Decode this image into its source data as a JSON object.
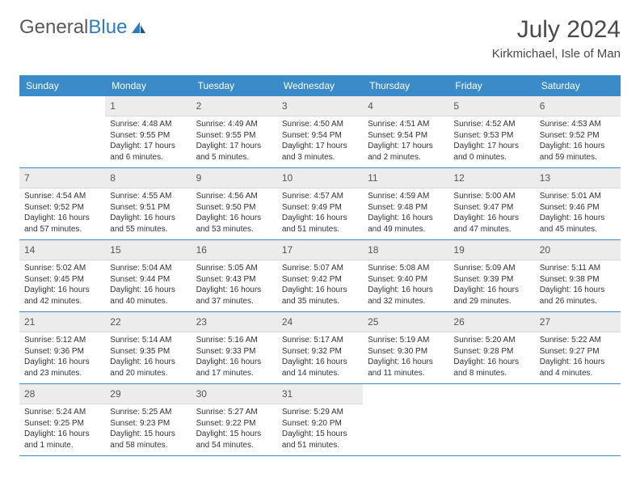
{
  "logo": {
    "text_part1": "General",
    "text_part2": "Blue"
  },
  "title": "July 2024",
  "location": "Kirkmichael, Isle of Man",
  "colors": {
    "header_bg": "#3b8bc8",
    "daynum_bg": "#ececec",
    "divider": "#3b8bc8",
    "logo_gray": "#5a5a5a",
    "logo_blue": "#2e7cc0"
  },
  "day_headers": [
    "Sunday",
    "Monday",
    "Tuesday",
    "Wednesday",
    "Thursday",
    "Friday",
    "Saturday"
  ],
  "weeks": [
    [
      {
        "n": "",
        "sunrise": "",
        "sunset": "",
        "daylight": ""
      },
      {
        "n": "1",
        "sunrise": "Sunrise: 4:48 AM",
        "sunset": "Sunset: 9:55 PM",
        "daylight": "Daylight: 17 hours and 6 minutes."
      },
      {
        "n": "2",
        "sunrise": "Sunrise: 4:49 AM",
        "sunset": "Sunset: 9:55 PM",
        "daylight": "Daylight: 17 hours and 5 minutes."
      },
      {
        "n": "3",
        "sunrise": "Sunrise: 4:50 AM",
        "sunset": "Sunset: 9:54 PM",
        "daylight": "Daylight: 17 hours and 3 minutes."
      },
      {
        "n": "4",
        "sunrise": "Sunrise: 4:51 AM",
        "sunset": "Sunset: 9:54 PM",
        "daylight": "Daylight: 17 hours and 2 minutes."
      },
      {
        "n": "5",
        "sunrise": "Sunrise: 4:52 AM",
        "sunset": "Sunset: 9:53 PM",
        "daylight": "Daylight: 17 hours and 0 minutes."
      },
      {
        "n": "6",
        "sunrise": "Sunrise: 4:53 AM",
        "sunset": "Sunset: 9:52 PM",
        "daylight": "Daylight: 16 hours and 59 minutes."
      }
    ],
    [
      {
        "n": "7",
        "sunrise": "Sunrise: 4:54 AM",
        "sunset": "Sunset: 9:52 PM",
        "daylight": "Daylight: 16 hours and 57 minutes."
      },
      {
        "n": "8",
        "sunrise": "Sunrise: 4:55 AM",
        "sunset": "Sunset: 9:51 PM",
        "daylight": "Daylight: 16 hours and 55 minutes."
      },
      {
        "n": "9",
        "sunrise": "Sunrise: 4:56 AM",
        "sunset": "Sunset: 9:50 PM",
        "daylight": "Daylight: 16 hours and 53 minutes."
      },
      {
        "n": "10",
        "sunrise": "Sunrise: 4:57 AM",
        "sunset": "Sunset: 9:49 PM",
        "daylight": "Daylight: 16 hours and 51 minutes."
      },
      {
        "n": "11",
        "sunrise": "Sunrise: 4:59 AM",
        "sunset": "Sunset: 9:48 PM",
        "daylight": "Daylight: 16 hours and 49 minutes."
      },
      {
        "n": "12",
        "sunrise": "Sunrise: 5:00 AM",
        "sunset": "Sunset: 9:47 PM",
        "daylight": "Daylight: 16 hours and 47 minutes."
      },
      {
        "n": "13",
        "sunrise": "Sunrise: 5:01 AM",
        "sunset": "Sunset: 9:46 PM",
        "daylight": "Daylight: 16 hours and 45 minutes."
      }
    ],
    [
      {
        "n": "14",
        "sunrise": "Sunrise: 5:02 AM",
        "sunset": "Sunset: 9:45 PM",
        "daylight": "Daylight: 16 hours and 42 minutes."
      },
      {
        "n": "15",
        "sunrise": "Sunrise: 5:04 AM",
        "sunset": "Sunset: 9:44 PM",
        "daylight": "Daylight: 16 hours and 40 minutes."
      },
      {
        "n": "16",
        "sunrise": "Sunrise: 5:05 AM",
        "sunset": "Sunset: 9:43 PM",
        "daylight": "Daylight: 16 hours and 37 minutes."
      },
      {
        "n": "17",
        "sunrise": "Sunrise: 5:07 AM",
        "sunset": "Sunset: 9:42 PM",
        "daylight": "Daylight: 16 hours and 35 minutes."
      },
      {
        "n": "18",
        "sunrise": "Sunrise: 5:08 AM",
        "sunset": "Sunset: 9:40 PM",
        "daylight": "Daylight: 16 hours and 32 minutes."
      },
      {
        "n": "19",
        "sunrise": "Sunrise: 5:09 AM",
        "sunset": "Sunset: 9:39 PM",
        "daylight": "Daylight: 16 hours and 29 minutes."
      },
      {
        "n": "20",
        "sunrise": "Sunrise: 5:11 AM",
        "sunset": "Sunset: 9:38 PM",
        "daylight": "Daylight: 16 hours and 26 minutes."
      }
    ],
    [
      {
        "n": "21",
        "sunrise": "Sunrise: 5:12 AM",
        "sunset": "Sunset: 9:36 PM",
        "daylight": "Daylight: 16 hours and 23 minutes."
      },
      {
        "n": "22",
        "sunrise": "Sunrise: 5:14 AM",
        "sunset": "Sunset: 9:35 PM",
        "daylight": "Daylight: 16 hours and 20 minutes."
      },
      {
        "n": "23",
        "sunrise": "Sunrise: 5:16 AM",
        "sunset": "Sunset: 9:33 PM",
        "daylight": "Daylight: 16 hours and 17 minutes."
      },
      {
        "n": "24",
        "sunrise": "Sunrise: 5:17 AM",
        "sunset": "Sunset: 9:32 PM",
        "daylight": "Daylight: 16 hours and 14 minutes."
      },
      {
        "n": "25",
        "sunrise": "Sunrise: 5:19 AM",
        "sunset": "Sunset: 9:30 PM",
        "daylight": "Daylight: 16 hours and 11 minutes."
      },
      {
        "n": "26",
        "sunrise": "Sunrise: 5:20 AM",
        "sunset": "Sunset: 9:28 PM",
        "daylight": "Daylight: 16 hours and 8 minutes."
      },
      {
        "n": "27",
        "sunrise": "Sunrise: 5:22 AM",
        "sunset": "Sunset: 9:27 PM",
        "daylight": "Daylight: 16 hours and 4 minutes."
      }
    ],
    [
      {
        "n": "28",
        "sunrise": "Sunrise: 5:24 AM",
        "sunset": "Sunset: 9:25 PM",
        "daylight": "Daylight: 16 hours and 1 minute."
      },
      {
        "n": "29",
        "sunrise": "Sunrise: 5:25 AM",
        "sunset": "Sunset: 9:23 PM",
        "daylight": "Daylight: 15 hours and 58 minutes."
      },
      {
        "n": "30",
        "sunrise": "Sunrise: 5:27 AM",
        "sunset": "Sunset: 9:22 PM",
        "daylight": "Daylight: 15 hours and 54 minutes."
      },
      {
        "n": "31",
        "sunrise": "Sunrise: 5:29 AM",
        "sunset": "Sunset: 9:20 PM",
        "daylight": "Daylight: 15 hours and 51 minutes."
      },
      {
        "n": "",
        "sunrise": "",
        "sunset": "",
        "daylight": ""
      },
      {
        "n": "",
        "sunrise": "",
        "sunset": "",
        "daylight": ""
      },
      {
        "n": "",
        "sunrise": "",
        "sunset": "",
        "daylight": ""
      }
    ]
  ]
}
